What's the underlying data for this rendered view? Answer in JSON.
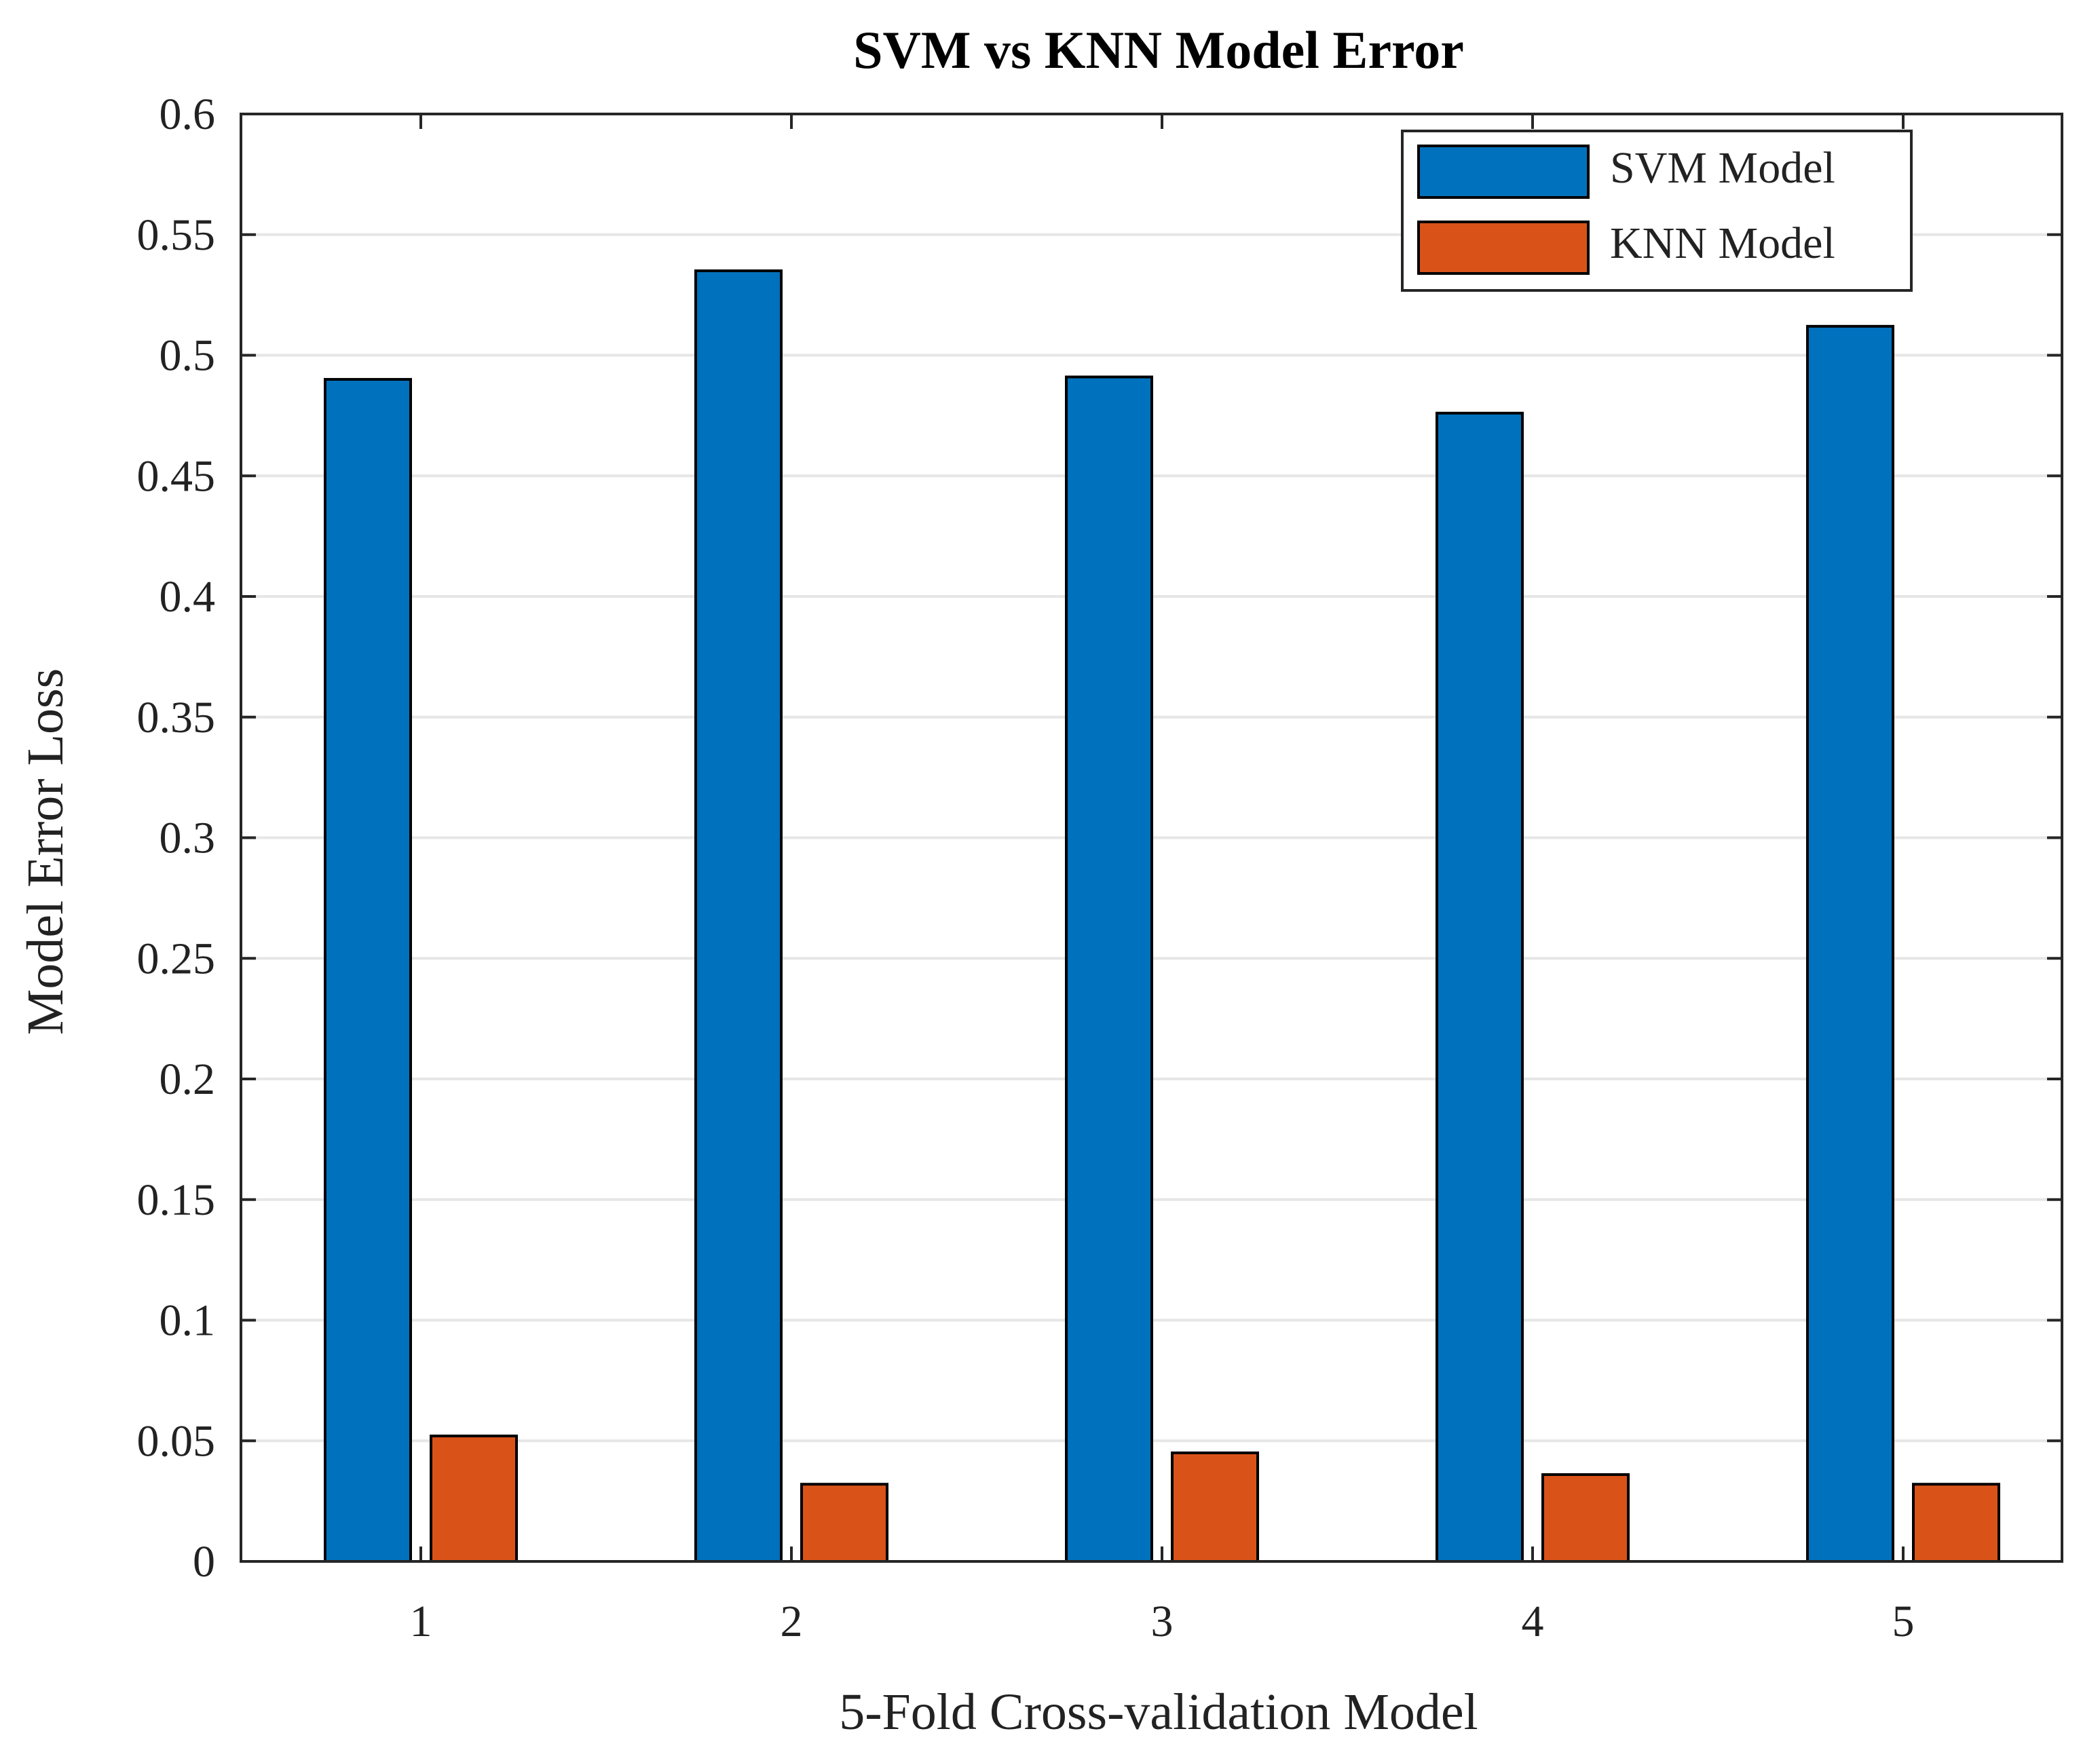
{
  "chart_data": {
    "type": "bar",
    "title": "SVM vs KNN Model Error",
    "xlabel": "5-Fold Cross-validation Model",
    "ylabel": "Model Error Loss",
    "categories": [
      "1",
      "2",
      "3",
      "4",
      "5"
    ],
    "series": [
      {
        "name": "SVM Model",
        "color": "#0072BD",
        "values": [
          0.49,
          0.535,
          0.491,
          0.476,
          0.512
        ]
      },
      {
        "name": "KNN Model",
        "color": "#D95319",
        "values": [
          0.052,
          0.032,
          0.045,
          0.036,
          0.032
        ]
      }
    ],
    "ylim": [
      0,
      0.6
    ],
    "yticks": [
      0,
      0.05,
      0.1,
      0.15,
      0.2,
      0.25,
      0.3,
      0.35,
      0.4,
      0.45,
      0.5,
      0.55,
      0.6
    ],
    "ytick_labels": [
      "0",
      "0.05",
      "0.1",
      "0.15",
      "0.2",
      "0.25",
      "0.3",
      "0.35",
      "0.4",
      "0.45",
      "0.5",
      "0.55",
      "0.6"
    ],
    "grid": "horizontal",
    "legend_position": "top-right"
  }
}
